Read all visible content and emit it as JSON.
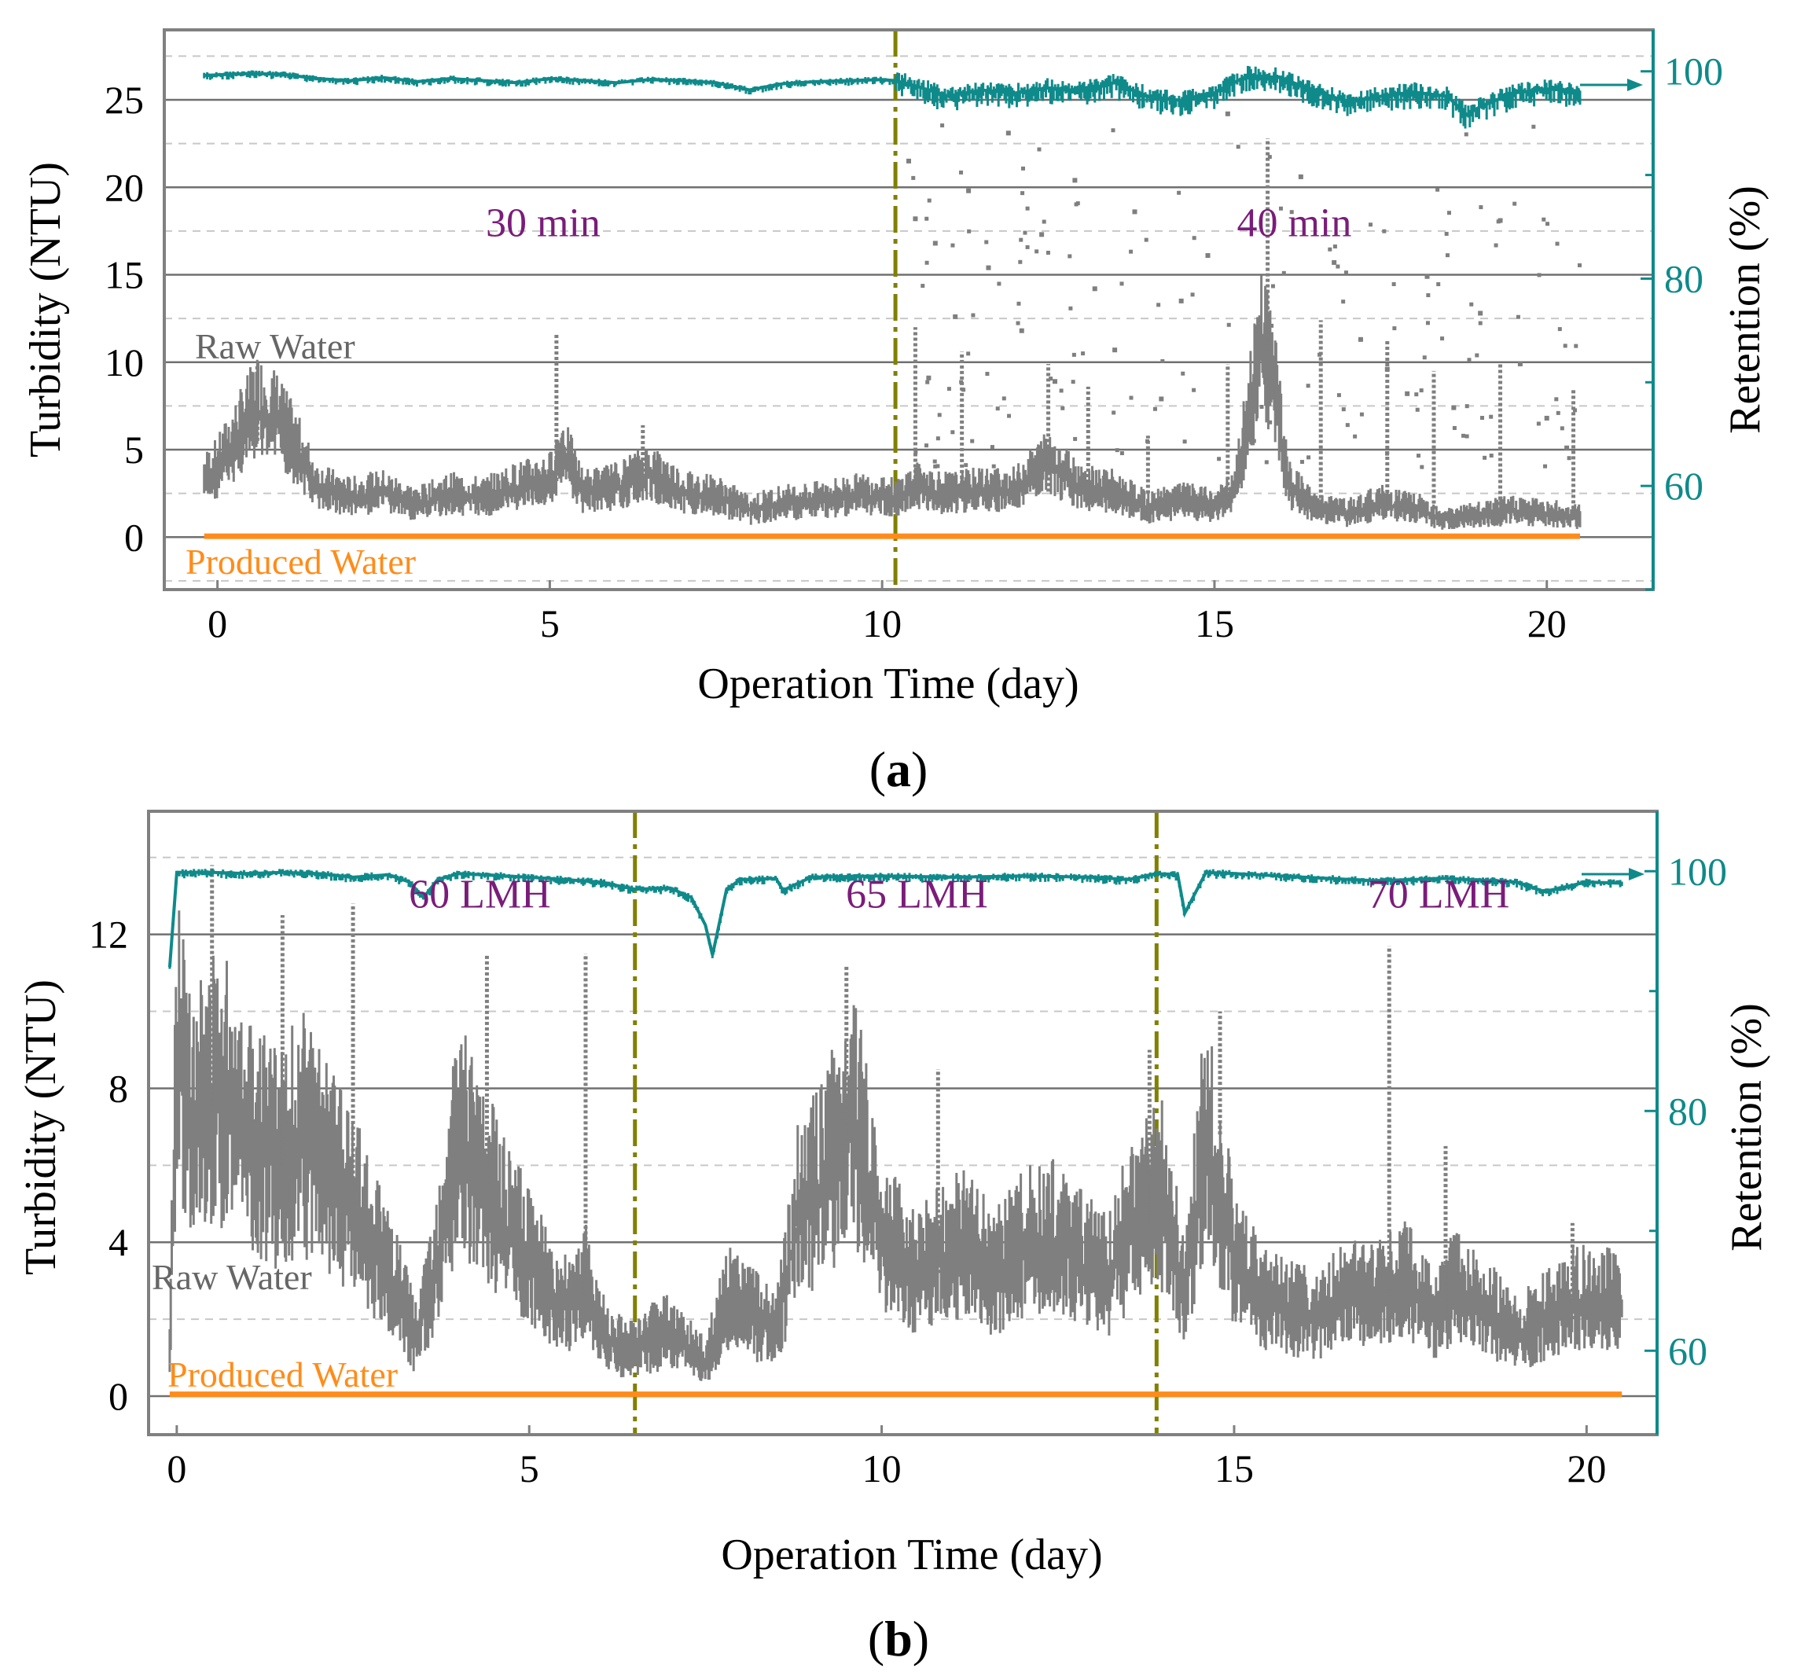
{
  "colors": {
    "raw": "#7f7f7f",
    "produced": "#ff8c1a",
    "retention": "#0f8a8a",
    "divider": "#808000",
    "phase_text": "#7a1d7a",
    "grid_major": "#707070",
    "grid_minor": "#c8c8c8",
    "frame": "#808080"
  },
  "chart_data": [
    {
      "type": "scatter",
      "panel_label": "a",
      "xlabel": "Operation Time (day)",
      "ylabel": "Turbidity (NTU)",
      "y2label": "Retention (%)",
      "xlim": [
        -0.8,
        21.6
      ],
      "ylim": [
        -3,
        29
      ],
      "y2lim": [
        50,
        104
      ],
      "xticks": [
        0,
        5,
        10,
        15,
        20
      ],
      "yticks": [
        0,
        5,
        10,
        15,
        20,
        25
      ],
      "y2ticks": [
        60,
        80,
        100
      ],
      "series_labels": {
        "raw": "Raw Water",
        "produced": "Produced Water"
      },
      "phase_labels": [
        {
          "text": "30 min",
          "x": 4.9,
          "y": 17.2
        },
        {
          "text": "40 min",
          "x": 16.2,
          "y": 17.2
        }
      ],
      "dividers": [
        10.2
      ],
      "raw_water": {
        "x": [
          -0.2,
          0.0,
          0.3,
          0.6,
          0.9,
          1.2,
          1.5,
          2.0,
          2.5,
          3.0,
          3.5,
          4.0,
          4.5,
          5.0,
          5.2,
          5.5,
          6.0,
          6.5,
          7.0,
          7.5,
          8.0,
          8.5,
          9.0,
          9.5,
          10.0,
          10.2,
          10.5,
          11.0,
          11.5,
          12.0,
          12.5,
          13.0,
          13.5,
          14.0,
          14.5,
          15.0,
          15.3,
          15.5,
          15.7,
          15.9,
          16.1,
          16.5,
          17.0,
          17.5,
          18.0,
          18.5,
          19.0,
          19.5,
          20.0,
          20.5
        ],
        "y": [
          3.2,
          3.8,
          5.5,
          7.2,
          6.5,
          4.8,
          2.8,
          2.2,
          2.5,
          1.8,
          2.4,
          2.2,
          2.8,
          3.2,
          4.8,
          2.5,
          2.8,
          3.6,
          2.5,
          2.3,
          1.5,
          1.9,
          2.0,
          2.3,
          2.4,
          2.1,
          2.8,
          2.4,
          2.6,
          2.6,
          4.2,
          2.8,
          2.5,
          1.6,
          2.0,
          1.7,
          2.4,
          6.5,
          10.5,
          9.0,
          3.0,
          1.6,
          1.3,
          1.9,
          1.6,
          1.0,
          1.2,
          1.5,
          1.3,
          1.1
        ]
      },
      "raw_spikes": {
        "x": [
          0.6,
          5.1,
          6.4,
          10.5,
          11.2,
          12.5,
          13.1,
          14.0,
          15.2,
          15.8,
          16.6,
          17.6,
          18.3,
          19.3,
          20.4
        ],
        "y": [
          9.8,
          11.6,
          6.4,
          12.0,
          10.6,
          9.9,
          8.6,
          5.8,
          9.9,
          22.8,
          12.4,
          11.2,
          9.5,
          9.9,
          8.4
        ]
      },
      "raw_scatter": {
        "x": [
          10.4,
          10.5,
          10.7,
          10.8,
          11.1,
          11.3,
          11.6,
          11.9,
          12.1,
          12.4,
          12.6,
          12.9,
          13.2,
          13.5,
          13.8,
          14.2,
          14.5,
          14.9,
          15.2,
          16.3,
          16.8,
          17.2,
          17.6,
          17.9,
          18.2,
          18.6,
          19.0,
          19.3,
          19.6,
          20.0,
          20.3
        ],
        "y": [
          21.5,
          18.2,
          9.1,
          16.8,
          12.6,
          19.8,
          15.4,
          23.1,
          11.8,
          17.3,
          8.9,
          20.4,
          14.2,
          10.7,
          18.6,
          7.9,
          13.5,
          16.1,
          24.2,
          20.6,
          15.7,
          11.3,
          9.6,
          8.2,
          14.9,
          7.4,
          12.8,
          18.1,
          9.9,
          6.8,
          5.1
        ]
      },
      "produced_water": {
        "x": [
          -0.2,
          20.5
        ],
        "y": [
          0.05,
          0.05
        ]
      },
      "retention": {
        "x": [
          -0.2,
          0.5,
          1.0,
          1.5,
          2.0,
          2.5,
          3.0,
          3.5,
          4.0,
          4.5,
          5.0,
          5.5,
          6.0,
          6.5,
          7.0,
          7.5,
          8.0,
          8.5,
          9.0,
          9.5,
          10.0,
          10.2,
          10.5,
          11.0,
          11.5,
          12.0,
          12.5,
          13.0,
          13.5,
          14.0,
          14.5,
          15.0,
          15.5,
          16.0,
          16.5,
          17.0,
          17.5,
          18.0,
          18.5,
          18.8,
          19.0,
          19.5,
          20.0,
          20.5
        ],
        "y": [
          99.6,
          99.8,
          99.7,
          99.3,
          99.1,
          99.4,
          99.0,
          99.3,
          99.1,
          98.9,
          99.3,
          99.1,
          98.9,
          99.2,
          99.1,
          98.9,
          98.2,
          98.8,
          99.0,
          99.1,
          99.2,
          99.1,
          98.6,
          97.6,
          98.2,
          97.9,
          98.4,
          98.1,
          98.9,
          97.6,
          97.2,
          97.9,
          99.6,
          99.4,
          98.1,
          97.1,
          97.6,
          98.0,
          97.6,
          95.8,
          96.6,
          97.9,
          98.3,
          98.1
        ]
      }
    },
    {
      "type": "scatter",
      "panel_label": "b",
      "xlabel": "Operation Time (day)",
      "ylabel": "Turbidity (NTU)",
      "y2label": "Retention (%)",
      "xlim": [
        -0.4,
        21.0
      ],
      "ylim": [
        -1.0,
        15.2
      ],
      "y2lim": [
        53,
        105
      ],
      "xticks": [
        0,
        5,
        10,
        15,
        20
      ],
      "yticks": [
        0,
        4,
        8,
        12
      ],
      "y2ticks": [
        60,
        80,
        100
      ],
      "series_labels": {
        "raw": "Raw Water",
        "produced": "Produced Water"
      },
      "phase_labels": [
        {
          "text": "60 LMH",
          "x": 4.3,
          "y": 12.7
        },
        {
          "text": "65 LMH",
          "x": 10.5,
          "y": 12.7
        },
        {
          "text": "70 LMH",
          "x": 17.9,
          "y": 12.7
        }
      ],
      "dividers": [
        6.5,
        13.9
      ],
      "raw_water": {
        "x": [
          -0.1,
          0.0,
          0.3,
          0.6,
          1.0,
          1.4,
          1.8,
          2.2,
          2.6,
          3.0,
          3.4,
          3.7,
          4.0,
          4.3,
          4.6,
          5.0,
          5.4,
          5.8,
          6.1,
          6.5,
          6.9,
          7.2,
          7.5,
          7.8,
          8.1,
          8.5,
          8.8,
          9.2,
          9.6,
          10.0,
          10.4,
          10.8,
          11.2,
          11.6,
          12.0,
          12.4,
          12.8,
          13.2,
          13.6,
          14.0,
          14.3,
          14.6,
          15.0,
          15.4,
          15.8,
          16.2,
          16.6,
          17.0,
          17.4,
          17.8,
          18.2,
          18.6,
          19.0,
          19.4,
          19.8,
          20.2,
          20.5
        ],
        "y": [
          1.2,
          8.5,
          7.2,
          7.8,
          6.8,
          6.0,
          6.5,
          5.5,
          4.5,
          3.2,
          1.4,
          3.5,
          6.5,
          5.5,
          4.5,
          3.5,
          2.2,
          2.8,
          1.4,
          1.1,
          1.6,
          1.3,
          0.8,
          2.4,
          2.2,
          1.5,
          4.5,
          5.5,
          7.0,
          4.0,
          3.2,
          3.5,
          3.8,
          3.0,
          3.8,
          4.0,
          3.5,
          3.0,
          4.5,
          5.0,
          2.5,
          6.8,
          3.5,
          2.4,
          2.2,
          2.0,
          2.6,
          2.4,
          3.0,
          2.0,
          2.8,
          2.2,
          1.5,
          2.0,
          2.4,
          2.5,
          2.2
        ]
      },
      "raw_spikes": {
        "x": [
          0.5,
          1.5,
          2.5,
          4.4,
          5.8,
          9.5,
          10.8,
          13.8,
          14.8,
          17.2,
          18.0,
          19.8
        ],
        "y": [
          13.8,
          12.5,
          12.8,
          11.5,
          11.5,
          11.2,
          8.5,
          9.0,
          10.0,
          11.7,
          6.5,
          4.5
        ]
      },
      "raw_scatter": {
        "x": [],
        "y": []
      },
      "produced_water": {
        "x": [
          -0.1,
          20.5
        ],
        "y": [
          0.05,
          0.05
        ]
      },
      "retention": {
        "x": [
          -0.1,
          0.0,
          0.5,
          1.0,
          1.5,
          2.0,
          2.5,
          3.0,
          3.3,
          3.5,
          3.7,
          4.0,
          5.0,
          5.5,
          6.0,
          6.5,
          7.0,
          7.3,
          7.5,
          7.6,
          7.8,
          8.0,
          8.5,
          8.6,
          9.0,
          10.0,
          11.0,
          12.0,
          13.0,
          13.5,
          13.9,
          14.2,
          14.3,
          14.6,
          15.0,
          16.0,
          17.0,
          18.0,
          19.0,
          19.4,
          20.0,
          20.5
        ],
        "y": [
          92,
          99.9,
          99.9,
          99.8,
          99.9,
          99.8,
          99.5,
          99.7,
          99.1,
          97.8,
          99.3,
          99.8,
          99.5,
          99.3,
          99.1,
          98.5,
          98.6,
          97.8,
          95.5,
          93.0,
          98.5,
          99.3,
          99.4,
          98.4,
          99.5,
          99.6,
          99.5,
          99.6,
          99.5,
          99.3,
          99.8,
          99.7,
          96.5,
          99.9,
          99.8,
          99.5,
          99.2,
          99.4,
          99.1,
          98.3,
          99.1,
          99.0
        ]
      }
    }
  ]
}
